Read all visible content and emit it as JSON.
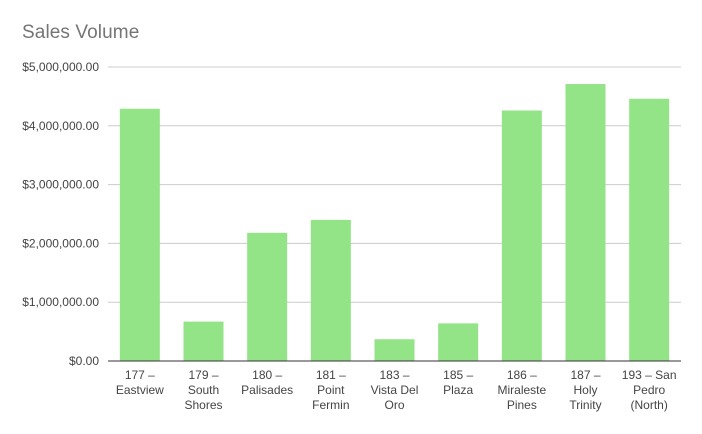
{
  "chart_data": {
    "type": "bar",
    "title": "Sales Volume",
    "xlabel": "",
    "ylabel": "",
    "categories": [
      [
        "177 –",
        "Eastview"
      ],
      [
        "179 –",
        "South",
        "Shores"
      ],
      [
        "180 –",
        "Palisades"
      ],
      [
        "181 –",
        "Point",
        "Fermin"
      ],
      [
        "183 –",
        "Vista Del",
        "Oro"
      ],
      [
        "185 –",
        "Plaza"
      ],
      [
        "186 –",
        "Miraleste",
        "Pines"
      ],
      [
        "187 –",
        "Holy",
        "Trinity"
      ],
      [
        "193 – San",
        "Pedro",
        "(North)"
      ]
    ],
    "values": [
      4290000,
      670000,
      2180000,
      2400000,
      370000,
      640000,
      4260000,
      4710000,
      4460000
    ],
    "ylim": [
      0,
      5000000
    ],
    "yticks": [
      0,
      1000000,
      2000000,
      3000000,
      4000000,
      5000000
    ],
    "ytick_labels": [
      "$0.00",
      "$1,000,000.00",
      "$2,000,000.00",
      "$3,000,000.00",
      "$4,000,000.00",
      "$5,000,000.00"
    ],
    "grid": true,
    "legend": "none",
    "colors": {
      "bar": "#93e387",
      "grid": "#cccccc",
      "axis": "#333333",
      "tick_text": "#444444",
      "title": "#757575"
    }
  }
}
